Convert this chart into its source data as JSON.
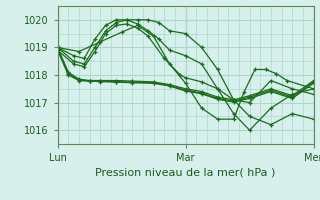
{
  "title": "Pression niveau de la mer( hPa )",
  "bg_color": "#d8f0ec",
  "grid_color": "#a8d8d0",
  "line_color": "#1a6b1a",
  "xlim": [
    0,
    48
  ],
  "ylim": [
    1015.5,
    1020.5
  ],
  "yticks": [
    1016,
    1017,
    1018,
    1019,
    1020
  ],
  "xtick_positions": [
    0,
    24,
    48
  ],
  "xtick_labels": [
    "Lun",
    "Mar",
    "Mer"
  ],
  "series": [
    {
      "x": [
        0,
        3,
        5,
        7,
        9,
        11,
        13,
        15,
        17,
        19,
        21,
        24,
        27,
        30,
        33,
        36,
        40,
        44,
        48
      ],
      "y": [
        1019.0,
        1018.7,
        1018.6,
        1019.3,
        1019.8,
        1020.0,
        1020.0,
        1020.0,
        1020.0,
        1019.9,
        1019.6,
        1019.5,
        1019.0,
        1018.2,
        1017.1,
        1016.5,
        1016.2,
        1016.6,
        1016.4
      ]
    },
    {
      "x": [
        0,
        3,
        5,
        7,
        9,
        11,
        13,
        15,
        17,
        19,
        21,
        24,
        27,
        30,
        33,
        36,
        40,
        44,
        48
      ],
      "y": [
        1019.0,
        1018.5,
        1018.4,
        1019.0,
        1019.6,
        1019.9,
        1020.0,
        1019.85,
        1019.6,
        1019.3,
        1018.9,
        1018.7,
        1018.4,
        1017.5,
        1016.6,
        1016.0,
        1016.8,
        1017.3,
        1017.5
      ]
    },
    {
      "x": [
        0,
        3,
        5,
        7,
        9,
        11,
        13,
        15,
        17,
        20,
        23,
        24,
        27,
        30,
        33,
        36,
        40,
        44,
        48
      ],
      "y": [
        1018.9,
        1018.4,
        1018.3,
        1018.85,
        1019.5,
        1019.8,
        1019.85,
        1019.7,
        1019.4,
        1018.6,
        1018.0,
        1017.9,
        1017.75,
        1017.5,
        1017.1,
        1017.0,
        1017.8,
        1017.5,
        1017.3
      ]
    },
    {
      "x": [
        0,
        2,
        4,
        6,
        8,
        11,
        14,
        18,
        21,
        24,
        27,
        30,
        33,
        36,
        40,
        44,
        48
      ],
      "y": [
        1019.0,
        1018.1,
        1017.85,
        1017.8,
        1017.8,
        1017.8,
        1017.78,
        1017.75,
        1017.65,
        1017.5,
        1017.4,
        1017.2,
        1017.1,
        1017.25,
        1017.5,
        1017.25,
        1017.8
      ]
    },
    {
      "x": [
        0,
        2,
        4,
        6,
        8,
        11,
        14,
        18,
        21,
        24,
        27,
        30,
        33,
        36,
        40,
        44,
        48
      ],
      "y": [
        1018.95,
        1018.05,
        1017.82,
        1017.78,
        1017.78,
        1017.76,
        1017.74,
        1017.72,
        1017.62,
        1017.45,
        1017.35,
        1017.15,
        1017.05,
        1017.2,
        1017.45,
        1017.2,
        1017.75
      ]
    },
    {
      "x": [
        0,
        2,
        4,
        6,
        8,
        11,
        14,
        18,
        21,
        24,
        27,
        30,
        33,
        36,
        40,
        44,
        48
      ],
      "y": [
        1018.9,
        1018.0,
        1017.8,
        1017.78,
        1017.76,
        1017.74,
        1017.72,
        1017.7,
        1017.6,
        1017.42,
        1017.32,
        1017.12,
        1017.02,
        1017.15,
        1017.4,
        1017.15,
        1017.7
      ]
    },
    {
      "x": [
        0,
        4,
        8,
        12,
        15,
        18,
        21,
        24,
        27,
        30,
        33,
        35,
        37,
        39,
        41,
        43,
        48
      ],
      "y": [
        1019.0,
        1018.85,
        1019.2,
        1019.55,
        1019.8,
        1019.4,
        1018.4,
        1017.7,
        1016.8,
        1016.4,
        1016.4,
        1017.4,
        1018.2,
        1018.2,
        1018.05,
        1017.8,
        1017.5
      ]
    }
  ]
}
